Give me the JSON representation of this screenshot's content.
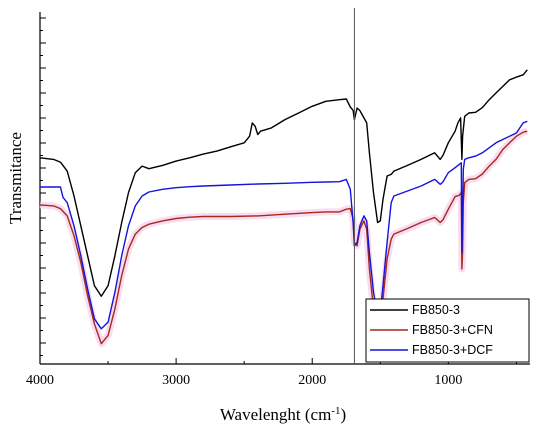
{
  "chart_data": {
    "type": "line",
    "xlabel": "Wavelenght (cm",
    "xlabel_sup": "-1",
    "xlabel_close": ")",
    "ylabel": "Transmitance",
    "xlim": [
      4000,
      400
    ],
    "x_reversed": true,
    "ylim": [
      0,
      1
    ],
    "y_tick_labels_shown": false,
    "x_ticks": [
      4000,
      3000,
      2000,
      1000
    ],
    "x_tick_labels": [
      "4000",
      "3000",
      "2000",
      "1000"
    ],
    "reference_line_x": 1690,
    "grid": false,
    "legend_position": "bottom-right",
    "series": [
      {
        "name": "FB850-3",
        "color": "#000000",
        "points": [
          [
            4000,
            0.585
          ],
          [
            3900,
            0.58
          ],
          [
            3850,
            0.572
          ],
          [
            3800,
            0.545
          ],
          [
            3750,
            0.47
          ],
          [
            3700,
            0.38
          ],
          [
            3650,
            0.29
          ],
          [
            3600,
            0.2
          ],
          [
            3550,
            0.168
          ],
          [
            3500,
            0.2
          ],
          [
            3450,
            0.29
          ],
          [
            3400,
            0.39
          ],
          [
            3350,
            0.48
          ],
          [
            3300,
            0.54
          ],
          [
            3250,
            0.56
          ],
          [
            3200,
            0.552
          ],
          [
            3100,
            0.562
          ],
          [
            3000,
            0.575
          ],
          [
            2900,
            0.585
          ],
          [
            2800,
            0.596
          ],
          [
            2700,
            0.605
          ],
          [
            2600,
            0.618
          ],
          [
            2500,
            0.63
          ],
          [
            2460,
            0.65
          ],
          [
            2440,
            0.69
          ],
          [
            2420,
            0.68
          ],
          [
            2400,
            0.655
          ],
          [
            2380,
            0.665
          ],
          [
            2300,
            0.675
          ],
          [
            2200,
            0.7
          ],
          [
            2100,
            0.72
          ],
          [
            2000,
            0.74
          ],
          [
            1900,
            0.755
          ],
          [
            1800,
            0.76
          ],
          [
            1750,
            0.762
          ],
          [
            1720,
            0.738
          ],
          [
            1700,
            0.728
          ],
          [
            1690,
            0.7
          ],
          [
            1670,
            0.735
          ],
          [
            1650,
            0.727
          ],
          [
            1600,
            0.69
          ],
          [
            1580,
            0.6
          ],
          [
            1550,
            0.48
          ],
          [
            1520,
            0.39
          ],
          [
            1500,
            0.395
          ],
          [
            1480,
            0.46
          ],
          [
            1450,
            0.53
          ],
          [
            1420,
            0.535
          ],
          [
            1400,
            0.545
          ],
          [
            1300,
            0.562
          ],
          [
            1200,
            0.58
          ],
          [
            1100,
            0.6
          ],
          [
            1060,
            0.58
          ],
          [
            1040,
            0.592
          ],
          [
            1000,
            0.63
          ],
          [
            950,
            0.665
          ],
          [
            930,
            0.69
          ],
          [
            910,
            0.705
          ],
          [
            900,
            0.58
          ],
          [
            895,
            0.65
          ],
          [
            880,
            0.71
          ],
          [
            850,
            0.72
          ],
          [
            800,
            0.722
          ],
          [
            750,
            0.736
          ],
          [
            700,
            0.76
          ],
          [
            650,
            0.78
          ],
          [
            600,
            0.8
          ],
          [
            550,
            0.82
          ],
          [
            500,
            0.828
          ],
          [
            450,
            0.835
          ],
          [
            420,
            0.85
          ]
        ]
      },
      {
        "name": "FB850-3+CFN",
        "color": "#a52a1a",
        "points": [
          [
            4000,
            0.443
          ],
          [
            3900,
            0.44
          ],
          [
            3850,
            0.432
          ],
          [
            3800,
            0.41
          ],
          [
            3750,
            0.35
          ],
          [
            3700,
            0.27
          ],
          [
            3650,
            0.17
          ],
          [
            3600,
            0.085
          ],
          [
            3550,
            0.025
          ],
          [
            3500,
            0.05
          ],
          [
            3450,
            0.13
          ],
          [
            3400,
            0.23
          ],
          [
            3350,
            0.31
          ],
          [
            3300,
            0.355
          ],
          [
            3250,
            0.375
          ],
          [
            3200,
            0.385
          ],
          [
            3100,
            0.395
          ],
          [
            3000,
            0.402
          ],
          [
            2900,
            0.406
          ],
          [
            2800,
            0.408
          ],
          [
            2600,
            0.408
          ],
          [
            2400,
            0.41
          ],
          [
            2200,
            0.415
          ],
          [
            2000,
            0.42
          ],
          [
            1900,
            0.422
          ],
          [
            1800,
            0.422
          ],
          [
            1750,
            0.43
          ],
          [
            1720,
            0.432
          ],
          [
            1700,
            0.4
          ],
          [
            1690,
            0.33
          ],
          [
            1670,
            0.32
          ],
          [
            1650,
            0.37
          ],
          [
            1620,
            0.395
          ],
          [
            1600,
            0.37
          ],
          [
            1580,
            0.25
          ],
          [
            1550,
            0.13
          ],
          [
            1520,
            0.07
          ],
          [
            1500,
            0.08
          ],
          [
            1480,
            0.16
          ],
          [
            1450,
            0.28
          ],
          [
            1420,
            0.34
          ],
          [
            1400,
            0.355
          ],
          [
            1300,
            0.372
          ],
          [
            1200,
            0.39
          ],
          [
            1100,
            0.405
          ],
          [
            1060,
            0.39
          ],
          [
            1040,
            0.398
          ],
          [
            1000,
            0.43
          ],
          [
            950,
            0.468
          ],
          [
            920,
            0.472
          ],
          [
            905,
            0.48
          ],
          [
            900,
            0.25
          ],
          [
            895,
            0.3
          ],
          [
            890,
            0.45
          ],
          [
            880,
            0.51
          ],
          [
            850,
            0.52
          ],
          [
            800,
            0.522
          ],
          [
            750,
            0.536
          ],
          [
            700,
            0.56
          ],
          [
            650,
            0.58
          ],
          [
            600,
            0.61
          ],
          [
            550,
            0.63
          ],
          [
            500,
            0.65
          ],
          [
            450,
            0.662
          ],
          [
            420,
            0.665
          ]
        ]
      },
      {
        "name": "FB850-3+DCF",
        "color": "#1414dc",
        "points": [
          [
            4000,
            0.497
          ],
          [
            3900,
            0.497
          ],
          [
            3850,
            0.497
          ],
          [
            3830,
            0.465
          ],
          [
            3800,
            0.45
          ],
          [
            3750,
            0.38
          ],
          [
            3700,
            0.29
          ],
          [
            3650,
            0.19
          ],
          [
            3600,
            0.1
          ],
          [
            3550,
            0.07
          ],
          [
            3500,
            0.09
          ],
          [
            3450,
            0.18
          ],
          [
            3400,
            0.29
          ],
          [
            3350,
            0.38
          ],
          [
            3300,
            0.44
          ],
          [
            3250,
            0.47
          ],
          [
            3200,
            0.482
          ],
          [
            3100,
            0.49
          ],
          [
            3000,
            0.495
          ],
          [
            2900,
            0.498
          ],
          [
            2800,
            0.5
          ],
          [
            2600,
            0.503
          ],
          [
            2400,
            0.506
          ],
          [
            2200,
            0.508
          ],
          [
            2000,
            0.511
          ],
          [
            1900,
            0.512
          ],
          [
            1800,
            0.513
          ],
          [
            1750,
            0.52
          ],
          [
            1720,
            0.49
          ],
          [
            1700,
            0.39
          ],
          [
            1690,
            0.32
          ],
          [
            1670,
            0.33
          ],
          [
            1650,
            0.38
          ],
          [
            1620,
            0.41
          ],
          [
            1600,
            0.395
          ],
          [
            1580,
            0.3
          ],
          [
            1550,
            0.18
          ],
          [
            1520,
            0.11
          ],
          [
            1500,
            0.12
          ],
          [
            1480,
            0.2
          ],
          [
            1450,
            0.33
          ],
          [
            1420,
            0.45
          ],
          [
            1400,
            0.47
          ],
          [
            1300,
            0.485
          ],
          [
            1200,
            0.5
          ],
          [
            1100,
            0.52
          ],
          [
            1060,
            0.505
          ],
          [
            1040,
            0.512
          ],
          [
            1000,
            0.54
          ],
          [
            950,
            0.555
          ],
          [
            920,
            0.565
          ],
          [
            905,
            0.57
          ],
          [
            900,
            0.3
          ],
          [
            895,
            0.4
          ],
          [
            890,
            0.55
          ],
          [
            880,
            0.58
          ],
          [
            850,
            0.585
          ],
          [
            800,
            0.59
          ],
          [
            750,
            0.6
          ],
          [
            700,
            0.615
          ],
          [
            650,
            0.63
          ],
          [
            600,
            0.64
          ],
          [
            550,
            0.65
          ],
          [
            500,
            0.66
          ],
          [
            450,
            0.69
          ],
          [
            420,
            0.695
          ]
        ]
      }
    ]
  }
}
